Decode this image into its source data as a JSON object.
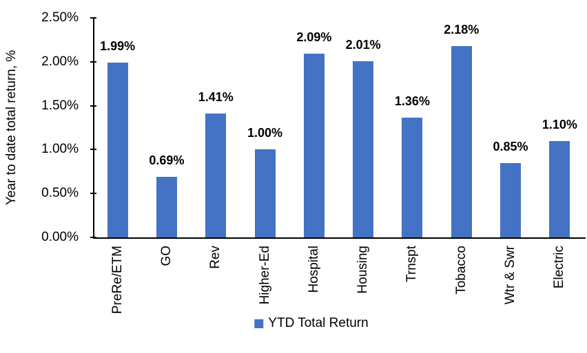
{
  "chart_data": {
    "type": "bar",
    "title": "",
    "ylabel": "Year to date total return, %",
    "xlabel": "",
    "categories": [
      "PreRe/ETM",
      "GO",
      "Rev",
      "Higher-Ed",
      "Hospital",
      "Housing",
      "Trnspt",
      "Tobacco",
      "Wtr & Swr",
      "Electric"
    ],
    "series": [
      {
        "name": "YTD Total Return",
        "values": [
          1.99,
          0.69,
          1.41,
          1.0,
          2.09,
          2.01,
          1.36,
          2.18,
          0.85,
          1.1
        ],
        "value_labels": [
          "1.99%",
          "0.69%",
          "1.41%",
          "1.00%",
          "2.09%",
          "2.01%",
          "1.36%",
          "2.18%",
          "0.85%",
          "1.10%"
        ],
        "color": "#4472C4"
      }
    ],
    "ylim": [
      0,
      2.5
    ],
    "ytick_labels": [
      "0.00%",
      "0.50%",
      "1.00%",
      "1.50%",
      "2.00%",
      "2.50%"
    ],
    "grid": false,
    "legend_position": "bottom",
    "axis_color": "#000000",
    "text_color": "#000000"
  }
}
